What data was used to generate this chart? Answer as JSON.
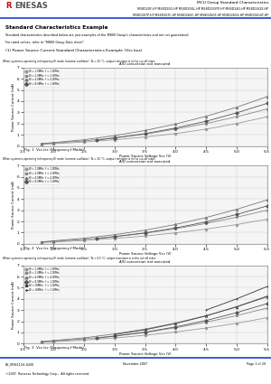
{
  "title_text": "MCU Group Standard Characteristics",
  "subtitle_line1": "M38D20F-HP M38D20G-HP M38D20GL-HP M38D20GYP-HP M38D24G-HP M38D24GX-HP",
  "subtitle_line2": "M38D26TP-HP M38D26TC-HP M38D26GC-HP M38D26GT-HP M38D26G4-HP M38D26G4T-HP",
  "section_title": "Standard Characteristics Example",
  "section_desc1": "Standard characteristics described below are just examples of the M800 Group's characteristics and are not guaranteed.",
  "section_desc2": "For rated values, refer to \"M800 Group Data sheet\".",
  "subsection_title": "(1) Power Source Current Standard Characteristics Example (Vss bus)",
  "chart1_note": "When system is operating in frequency(f) mode (ceramic oscillator). Ta = 25 °C, output transistor is in the cut-off state.",
  "chart1_subtitle": "A/D conversion not executed",
  "chart1_xlabel": "Power Source Voltage Vcc (V)",
  "chart1_ylabel": "Power Source Current (mA)",
  "chart1_fig_label": "Fig. 1  Vcc-Icc (Frequency-f Mode)",
  "chart1_xlim": [
    1.8,
    5.5
  ],
  "chart1_ylim": [
    0.0,
    7.0
  ],
  "chart1_xticks": [
    1.5,
    2.0,
    2.5,
    3.0,
    3.5,
    4.0,
    4.5,
    5.0,
    5.5
  ],
  "chart1_yticks": [
    0.0,
    1.0,
    2.0,
    3.0,
    4.0,
    5.0,
    6.0,
    7.0
  ],
  "chart1_series": [
    {
      "label": "f0 = 1.0MHz  f = 1.0MHz",
      "marker": "o",
      "color": "#999999",
      "x": [
        1.8,
        2.0,
        2.5,
        3.0,
        3.5,
        4.0,
        4.5,
        5.0,
        5.5
      ],
      "y": [
        0.15,
        0.2,
        0.35,
        0.55,
        0.8,
        1.1,
        1.5,
        2.0,
        2.6
      ]
    },
    {
      "label": "f0 = 2.0MHz  f = 2.0MHz",
      "marker": "s",
      "color": "#888888",
      "x": [
        1.8,
        2.0,
        2.5,
        3.0,
        3.5,
        4.0,
        4.5,
        5.0,
        5.5
      ],
      "y": [
        0.18,
        0.25,
        0.45,
        0.72,
        1.05,
        1.5,
        2.0,
        2.6,
        3.3
      ]
    },
    {
      "label": "f0 = 4.0MHz  f = 4.0MHz",
      "marker": "^",
      "color": "#777777",
      "x": [
        1.8,
        2.0,
        2.5,
        3.0,
        3.5,
        4.0,
        4.5,
        5.0,
        5.5
      ],
      "y": [
        0.2,
        0.3,
        0.55,
        0.92,
        1.38,
        1.95,
        2.65,
        3.45,
        4.4
      ]
    },
    {
      "label": "f0 = 8.0MHz  f = 1.0MHz",
      "marker": "D",
      "color": "#555555",
      "x": [
        2.7,
        3.0,
        3.5,
        4.0,
        4.5,
        5.0,
        5.5
      ],
      "y": [
        0.5,
        0.72,
        1.1,
        1.6,
        2.2,
        2.95,
        3.8
      ]
    }
  ],
  "chart2_note": "When system is operating in frequency(f) mode (ceramic oscillator). Ta = 25 °C, output transistor is in the cut-off state.",
  "chart2_subtitle": "A/D conversion not executed",
  "chart2_xlabel": "Power Source Voltage Vcc (V)",
  "chart2_ylabel": "Power Source Current (mA)",
  "chart2_fig_label": "Fig. 2  Vcc-Icc (Frequency-f Mode)",
  "chart2_xlim": [
    1.8,
    5.5
  ],
  "chart2_ylim": [
    0.0,
    7.0
  ],
  "chart2_xticks": [
    1.5,
    2.0,
    2.5,
    3.0,
    3.5,
    4.0,
    4.5,
    5.0,
    5.5
  ],
  "chart2_yticks": [
    0.0,
    1.0,
    2.0,
    3.0,
    4.0,
    5.0,
    6.0,
    7.0
  ],
  "chart2_series": [
    {
      "label": "f0 = 1.0MHz  f = 1.0MHz",
      "marker": "o",
      "color": "#999999",
      "x": [
        1.8,
        2.0,
        2.5,
        3.0,
        3.5,
        4.0,
        4.5,
        5.0,
        5.5
      ],
      "y": [
        0.12,
        0.17,
        0.3,
        0.48,
        0.7,
        0.98,
        1.32,
        1.72,
        2.2
      ]
    },
    {
      "label": "f0 = 2.0MHz  f = 2.0MHz",
      "marker": "s",
      "color": "#888888",
      "x": [
        1.8,
        2.0,
        2.5,
        3.0,
        3.5,
        4.0,
        4.5,
        5.0,
        5.5
      ],
      "y": [
        0.15,
        0.22,
        0.4,
        0.64,
        0.95,
        1.35,
        1.82,
        2.38,
        3.0
      ]
    },
    {
      "label": "f0 = 4.0MHz  f = 4.0MHz",
      "marker": "^",
      "color": "#777777",
      "x": [
        1.8,
        2.0,
        2.5,
        3.0,
        3.5,
        4.0,
        4.5,
        5.0,
        5.5
      ],
      "y": [
        0.18,
        0.27,
        0.5,
        0.82,
        1.22,
        1.73,
        2.35,
        3.08,
        3.92
      ]
    },
    {
      "label": "f0 = 8.0MHz  f = 1.0MHz",
      "marker": "D",
      "color": "#555555",
      "x": [
        2.7,
        3.0,
        3.5,
        4.0,
        4.5,
        5.0,
        5.5
      ],
      "y": [
        0.45,
        0.65,
        0.98,
        1.42,
        1.96,
        2.62,
        3.38
      ]
    }
  ],
  "chart3_note": "When system is operating in frequency(f) mode (ceramic oscillator). Ta = 0.5 °C, output transistor is in the cut-off state.",
  "chart3_subtitle": "A/D conversion not executed",
  "chart3_xlabel": "Power Source Voltage Vcc (V)",
  "chart3_ylabel": "Power Source Current (mA)",
  "chart3_fig_label": "Fig. 3  Vcc-Icc (Frequency-f Mode)",
  "chart3_xlim": [
    1.8,
    5.5
  ],
  "chart3_ylim": [
    0.0,
    7.0
  ],
  "chart3_xticks": [
    1.5,
    2.0,
    2.5,
    3.0,
    3.5,
    4.0,
    4.5,
    5.0,
    5.5
  ],
  "chart3_yticks": [
    0.0,
    1.0,
    2.0,
    3.0,
    4.0,
    5.0,
    6.0,
    7.0
  ],
  "chart3_series": [
    {
      "label": "f0 = 1.0MHz  f = 1.0MHz",
      "marker": "o",
      "color": "#999999",
      "x": [
        1.8,
        2.0,
        2.5,
        3.0,
        3.5,
        4.0,
        4.5,
        5.0,
        5.5
      ],
      "y": [
        0.13,
        0.18,
        0.32,
        0.51,
        0.75,
        1.04,
        1.4,
        1.82,
        2.32
      ]
    },
    {
      "label": "f0 = 2.0MHz  f = 2.0MHz",
      "marker": "s",
      "color": "#888888",
      "x": [
        1.8,
        2.0,
        2.5,
        3.0,
        3.5,
        4.0,
        4.5,
        5.0,
        5.5
      ],
      "y": [
        0.16,
        0.24,
        0.43,
        0.68,
        1.0,
        1.42,
        1.92,
        2.5,
        3.18
      ]
    },
    {
      "label": "f0 = 4.0MHz  f = 4.0MHz",
      "marker": "^",
      "color": "#777777",
      "x": [
        1.8,
        2.0,
        2.5,
        3.0,
        3.5,
        4.0,
        4.5,
        5.0,
        5.5
      ],
      "y": [
        0.19,
        0.28,
        0.52,
        0.87,
        1.3,
        1.84,
        2.5,
        3.28,
        4.18
      ]
    },
    {
      "label": "f0 = 8.0MHz  f = 1.0MHz",
      "marker": "D",
      "color": "#555555",
      "x": [
        2.7,
        3.0,
        3.5,
        4.0,
        4.5,
        5.0,
        5.5
      ],
      "y": [
        0.48,
        0.68,
        1.03,
        1.5,
        2.07,
        2.77,
        3.58
      ]
    },
    {
      "label": "f0 = 10MHz   f = 1.0MHz",
      "marker": "x",
      "color": "#444444",
      "x": [
        3.0,
        3.5,
        4.0,
        4.5,
        5.0,
        5.5
      ],
      "y": [
        0.82,
        1.24,
        1.8,
        2.48,
        3.3,
        4.24
      ]
    },
    {
      "label": "f0 = 16MHz   f = 1.0MHz",
      "marker": "+",
      "color": "#333333",
      "x": [
        4.5,
        5.0,
        5.5
      ],
      "y": [
        3.0,
        4.0,
        5.1
      ]
    }
  ],
  "footer_left": "RE_M38111H-0200",
  "footer_date": "November 2007",
  "footer_copyright": "©2007  Renesas Technology Corp.,  All rights reserved.",
  "footer_page": "Page 1 of 29",
  "bg_color": "#ffffff",
  "line_color_blue": "#1a3fcc",
  "text_color": "#000000",
  "grid_color": "#cccccc",
  "chart_border": "#888888"
}
